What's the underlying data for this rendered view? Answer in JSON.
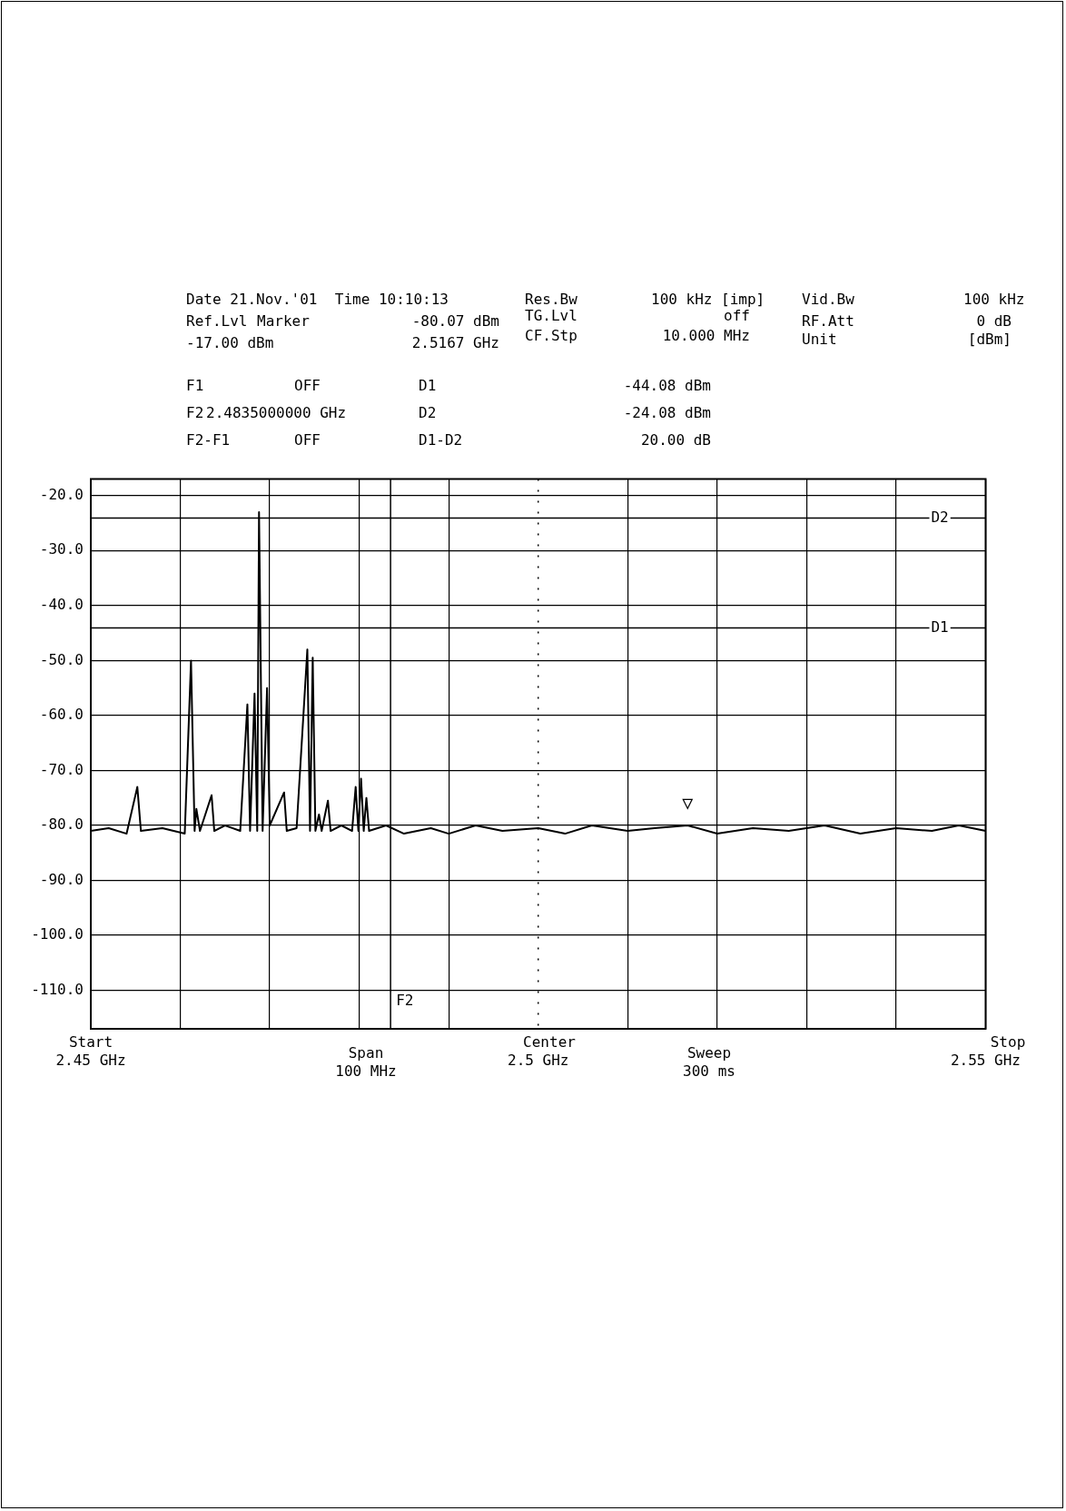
{
  "chart_data": {
    "type": "line",
    "x": [
      2.45,
      2.452,
      2.454,
      2.4552,
      2.4556,
      2.458,
      2.4605,
      2.4612,
      2.4616,
      2.4618,
      2.4622,
      2.4635,
      2.4638,
      2.465,
      2.4667,
      2.4675,
      2.4678,
      2.4683,
      2.4686,
      2.4688,
      2.4692,
      2.4697,
      2.47,
      2.4716,
      2.4719,
      2.473,
      2.4742,
      2.4745,
      2.4748,
      2.4751,
      2.4755,
      2.4758,
      2.4765,
      2.4768,
      2.478,
      2.4792,
      2.4796,
      2.4799,
      2.4802,
      2.4805,
      2.4808,
      2.4811,
      2.483,
      2.485,
      2.488,
      2.49,
      2.493,
      2.496,
      2.5,
      2.503,
      2.506,
      2.51,
      2.513,
      2.5167,
      2.52,
      2.524,
      2.528,
      2.532,
      2.536,
      2.54,
      2.544,
      2.547,
      2.55
    ],
    "series": [
      {
        "color": "#000000",
        "values": [
          -81,
          -80.5,
          -81.5,
          -73,
          -81,
          -80.5,
          -81.5,
          -50,
          -81,
          -77,
          -81,
          -74.5,
          -81,
          -80,
          -81,
          -58,
          -81,
          -56,
          -81,
          -23,
          -81,
          -55,
          -80,
          -74,
          -81,
          -80.5,
          -48,
          -81,
          -49.5,
          -81,
          -78,
          -81,
          -75.5,
          -81,
          -80,
          -81,
          -73,
          -81,
          -71.5,
          -81,
          -75,
          -81,
          -80,
          -81.5,
          -80.5,
          -81.5,
          -80,
          -81,
          -80.5,
          -81.5,
          -80,
          -81,
          -80.5,
          -80,
          -81.5,
          -80.5,
          -81,
          -80,
          -81.5,
          -80.5,
          -81,
          -80,
          -81
        ]
      }
    ],
    "xlim": [
      2.45,
      2.55
    ],
    "xticks": [
      {
        "value": 2.45,
        "label": "2.45 GHz"
      },
      {
        "value": 2.46,
        "label": null
      },
      {
        "value": 2.47,
        "label": null
      },
      {
        "value": 2.48,
        "label": null
      },
      {
        "value": 2.49,
        "label": null
      },
      {
        "value": 2.5,
        "label": "2.5 GHz"
      },
      {
        "value": 2.51,
        "label": null
      },
      {
        "value": 2.52,
        "label": null
      },
      {
        "value": 2.53,
        "label": null
      },
      {
        "value": 2.54,
        "label": null
      },
      {
        "value": 2.55,
        "label": "2.55 GHz"
      }
    ],
    "ylim": [
      -117,
      -17
    ],
    "yticks": [
      {
        "value": -20,
        "label": "-20.0"
      },
      {
        "value": -30,
        "label": "-30.0"
      },
      {
        "value": -40,
        "label": "-40.0"
      },
      {
        "value": -50,
        "label": "-50.0"
      },
      {
        "value": -60,
        "label": "-60.0"
      },
      {
        "value": -70,
        "label": "-70.0"
      },
      {
        "value": -80,
        "label": "-80.0"
      },
      {
        "value": -90,
        "label": "-90.0"
      },
      {
        "value": -100,
        "label": "-100.0"
      },
      {
        "value": -110,
        "label": "-110.0"
      }
    ],
    "grid": true,
    "legend": false,
    "marker": "none",
    "line_style": "solid",
    "ref_lines": [
      {
        "axis": "y",
        "value": -44.08,
        "label": "D1"
      },
      {
        "axis": "y",
        "value": -24.08,
        "label": "D2"
      },
      {
        "axis": "x",
        "value": 2.4835,
        "label": "F2"
      },
      {
        "axis": "x",
        "value": 2.5,
        "line_style": "dotted"
      }
    ],
    "annotations": [
      "Date 21.Nov.'01  Time 10:10:13",
      "Ref.Lvl",
      "-17.00 dBm",
      "Marker",
      "-80.07 dBm",
      "2.5167 GHz",
      "Res.Bw",
      "TG.Lvl",
      "CF.Stp",
      "100 kHz [imp]",
      "off",
      "10.000 MHz",
      "Vid.Bw",
      "RF.Att",
      "Unit",
      "100 kHz",
      "0 dB",
      "[dBm]",
      "F1",
      "OFF",
      "F2",
      "2.4835000000 GHz",
      "F2-F1",
      "OFF",
      "D1",
      "-44.08 dBm",
      "D2",
      "-24.08 dBm",
      "D1-D2",
      "20.00 dB",
      "Span 100 MHz",
      "Sweep 300 ms",
      "Start",
      "Center",
      "Stop",
      {
        "text": "▽",
        "x": 2.5167,
        "y": -80.07
      }
    ]
  }
}
